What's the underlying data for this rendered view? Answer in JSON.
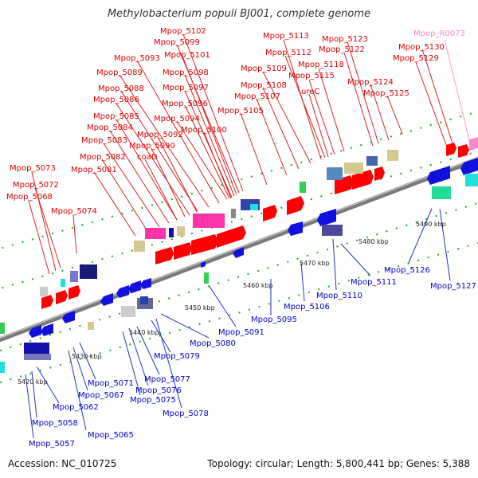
{
  "title": "Methylobacterium populi BJ001, complete genome",
  "accession": "Accession: NC_010725",
  "summary": "Topology: circular; Length: 5,800,441 bp; Genes: 5,388",
  "colors": {
    "forward_label": "#dd0000",
    "reverse_label": "#0000cc",
    "rna_label": "#ff88cc",
    "backbone": "#888888",
    "forward_gene": "#ff0000",
    "reverse_gene": "#0000ee",
    "tick": "#22aa22"
  },
  "kbp_ticks": [
    "5420 kbp",
    "5430 kbp",
    "5440 kbp",
    "5450 kbp",
    "5460 kbp",
    "5470 kbp",
    "5480 kbp",
    "5490 kbp"
  ],
  "top_labels": [
    "Mpop_5102",
    "Mpop_5099",
    "Mpop_5101",
    "Mpop_5093",
    "Mpop_5089",
    "Mpop_5098",
    "Mpop_5088",
    "Mpop_5097",
    "Mpop_5086",
    "Mpop_5096",
    "Mpop_5085",
    "Mpop_5094",
    "Mpop_5084",
    "Mpop_5092",
    "Mpop_5100",
    "Mpop_5083",
    "Mpop_5090",
    "Mpop_5082",
    "coaD",
    "Mpop_5081",
    "Mpop_5073",
    "Mpop_5072",
    "Mpop_5068",
    "Mpop_5074",
    "Mpop_5113",
    "Mpop_5112",
    "Mpop_5109",
    "Mpop_5108",
    "Mpop_5107",
    "Mpop_5105",
    "Mpop_5118",
    "Mpop_5115",
    "ureC",
    "Mpop_5123",
    "Mpop_5122",
    "Mpop_5124",
    "Mpop_5125",
    "Mpop_R0073",
    "Mpop_5130",
    "Mpop_5129"
  ],
  "bottom_labels": [
    "Mpop_5126",
    "Mpop_5127",
    "Mpop_5111",
    "Mpop_5110",
    "Mpop_5106",
    "Mpop_5095",
    "Mpop_5091",
    "Mpop_5080",
    "Mpop_5079",
    "Mpop_5077",
    "Mpop_5076",
    "Mpop_5075",
    "Mpop_5078",
    "Mpop_5071",
    "Mpop_5067",
    "Mpop_5062",
    "Mpop_5058",
    "Mpop_5065",
    "Mpop_5057"
  ]
}
